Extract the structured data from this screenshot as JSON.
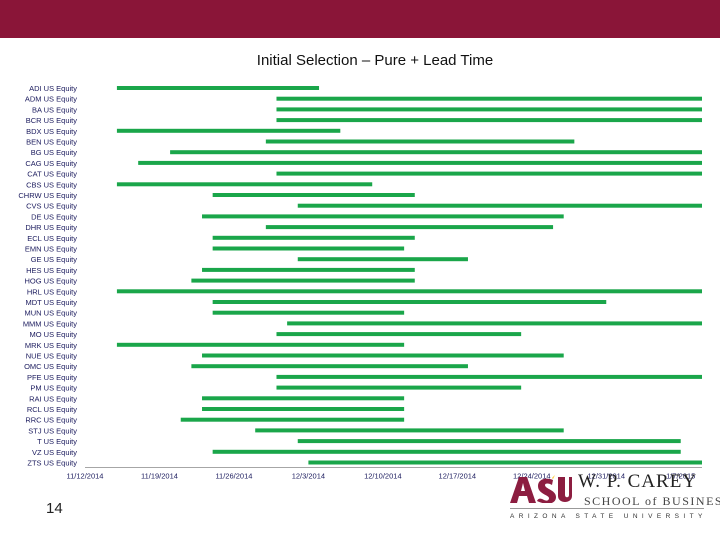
{
  "slide": {
    "title": "Initial Selection – Pure + Lead Time",
    "page_number": "14"
  },
  "logo": {
    "asu": "ASU",
    "name": "W. P. CAREY",
    "school": "SCHOOL of BUSINESS",
    "university": "ARIZONA STATE UNIVERSITY"
  },
  "colors": {
    "header_band": "#8a1538",
    "bar": "#1aa64a",
    "logo_maroon": "#8c1d40"
  },
  "chart_data": {
    "type": "bar",
    "orientation": "horizontal-range",
    "title": "Initial Selection – Pure + Lead Time",
    "xlabel": "",
    "ylabel": "",
    "grid": false,
    "legend": "none",
    "xlim": [
      "11/12/2014",
      "1/9/2015"
    ],
    "x_ticks": [
      "11/12/2014",
      "11/19/2014",
      "11/26/2014",
      "12/3/2014",
      "12/10/2014",
      "12/17/2014",
      "12/24/2014",
      "12/31/2014",
      "1/7/2015"
    ],
    "categories": [
      "ADI US Equity",
      "ADM US Equity",
      "BA US Equity",
      "BCR US Equity",
      "BDX US Equity",
      "BEN US Equity",
      "BG US Equity",
      "CAG US Equity",
      "CAT US Equity",
      "CBS US Equity",
      "CHRW US Equity",
      "CVS US Equity",
      "DE US Equity",
      "DHR US Equity",
      "ECL US Equity",
      "EMN US Equity",
      "GE US Equity",
      "HES US Equity",
      "HOG US Equity",
      "HRL US Equity",
      "MDT US Equity",
      "MUN US Equity",
      "MMM US Equity",
      "MO US Equity",
      "MRK US Equity",
      "NUE US Equity",
      "OMC US Equity",
      "PFE US Equity",
      "PM US Equity",
      "RAI US Equity",
      "RCL US Equity",
      "RRC US Equity",
      "STJ US Equity",
      "T US Equity",
      "VZ US Equity",
      "ZTS US Equity"
    ],
    "series": [
      {
        "start": [
          "11/15/2014",
          "11/30/2014",
          "11/30/2014",
          "11/30/2014",
          "11/15/2014",
          "11/29/2014",
          "11/20/2014",
          "11/17/2014",
          "11/30/2014",
          "11/15/2014",
          "11/24/2014",
          "12/2/2014",
          "11/23/2014",
          "11/29/2014",
          "11/24/2014",
          "11/24/2014",
          "12/2/2014",
          "11/23/2014",
          "11/22/2014",
          "11/15/2014",
          "11/24/2014",
          "11/24/2014",
          "12/1/2014",
          "11/30/2014",
          "11/15/2014",
          "11/23/2014",
          "11/22/2014",
          "11/30/2014",
          "11/30/2014",
          "11/23/2014",
          "11/23/2014",
          "11/21/2014",
          "11/28/2014",
          "12/2/2014",
          "11/24/2014",
          "12/3/2014"
        ],
        "end": [
          "12/4/2014",
          "1/9/2015",
          "1/9/2015",
          "1/9/2015",
          "12/6/2014",
          "12/28/2014",
          "1/9/2015",
          "1/9/2015",
          "1/9/2015",
          "12/9/2014",
          "12/13/2014",
          "1/9/2015",
          "12/27/2014",
          "12/26/2014",
          "12/13/2014",
          "12/12/2014",
          "12/18/2014",
          "12/13/2014",
          "12/13/2014",
          "1/9/2015",
          "12/31/2014",
          "12/12/2014",
          "1/9/2015",
          "12/23/2014",
          "12/12/2014",
          "12/27/2014",
          "12/18/2014",
          "1/9/2015",
          "12/23/2014",
          "12/12/2014",
          "12/12/2014",
          "12/12/2014",
          "12/27/2014",
          "1/7/2015",
          "1/7/2015",
          "1/9/2015"
        ]
      }
    ]
  }
}
